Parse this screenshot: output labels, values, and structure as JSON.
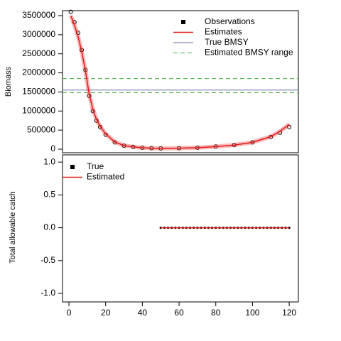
{
  "chart_data": [
    {
      "type": "line",
      "y_label": "Biomass",
      "x": [
        1,
        3,
        5,
        7,
        9,
        11,
        13,
        15,
        17,
        20,
        25,
        30,
        35,
        40,
        45,
        50,
        60,
        70,
        80,
        90,
        100,
        110,
        115,
        120
      ],
      "series": [
        {
          "name": "Observations",
          "color": "#000000",
          "marker": "circle",
          "values": [
            3600000,
            3330000,
            3050000,
            2600000,
            2080000,
            1400000,
            1000000,
            750000,
            580000,
            380000,
            180000,
            90000,
            60000,
            40000,
            25000,
            20000,
            25000,
            40000,
            70000,
            110000,
            180000,
            320000,
            430000,
            580000
          ]
        },
        {
          "name": "Estimates",
          "color": "#e41a1c",
          "marker": "line",
          "values": [
            3500000,
            3250000,
            2950000,
            2550000,
            2050000,
            1450000,
            1050000,
            780000,
            600000,
            400000,
            190000,
            95000,
            60000,
            38000,
            26000,
            22000,
            26000,
            40000,
            68000,
            108000,
            180000,
            330000,
            470000,
            650000
          ]
        }
      ],
      "reference_lines": [
        {
          "name": "True BMSY",
          "color": "#6a6a9a",
          "style": "solid",
          "values": [
            1550000
          ]
        },
        {
          "name": "Estimated BMSY range",
          "color": "#4daf4a",
          "style": "dashed",
          "values": [
            1480000,
            1850000
          ]
        }
      ],
      "legend": "top-right",
      "xlim": [
        -3.5,
        125
      ],
      "ylim": [
        -93000,
        3630000
      ],
      "yticks": [
        0,
        500000,
        1000000,
        1500000,
        2000000,
        2500000,
        3000000,
        3500000
      ]
    },
    {
      "type": "scatter",
      "y_label": "Total allowable catch",
      "x": [
        50,
        52,
        54,
        56,
        58,
        60,
        62,
        64,
        66,
        68,
        70,
        72,
        74,
        76,
        78,
        80,
        82,
        84,
        86,
        88,
        90,
        92,
        94,
        96,
        98,
        100,
        102,
        104,
        106,
        108,
        110,
        112,
        114,
        116,
        118,
        120
      ],
      "series": [
        {
          "name": "True",
          "color": "#000000",
          "marker": "point",
          "values": [
            0,
            0,
            0,
            0,
            0,
            0,
            0,
            0,
            0,
            0,
            0,
            0,
            0,
            0,
            0,
            0,
            0,
            0,
            0,
            0,
            0,
            0,
            0,
            0,
            0,
            0,
            0,
            0,
            0,
            0,
            0,
            0,
            0,
            0,
            0,
            0
          ]
        },
        {
          "name": "Estimated",
          "color": "#e41a1c",
          "marker": "line",
          "values": [
            0,
            0,
            0,
            0,
            0,
            0,
            0,
            0,
            0,
            0,
            0,
            0,
            0,
            0,
            0,
            0,
            0,
            0,
            0,
            0,
            0,
            0,
            0,
            0,
            0,
            0,
            0,
            0,
            0,
            0,
            0,
            0,
            0,
            0,
            0,
            0
          ]
        }
      ],
      "legend": "top-left",
      "xlim": [
        -3.5,
        125
      ],
      "xticks": [
        0,
        20,
        40,
        60,
        80,
        100,
        120
      ],
      "ylim": [
        -1.13,
        1.11
      ],
      "yticks": [
        {
          "value": -1,
          "label": "-1.0"
        },
        {
          "value": -0.5,
          "label": "-0.5"
        },
        {
          "value": 0,
          "label": "0.0"
        },
        {
          "value": 0.5,
          "label": "0.5"
        },
        {
          "value": 1,
          "label": "1.0"
        }
      ]
    }
  ]
}
